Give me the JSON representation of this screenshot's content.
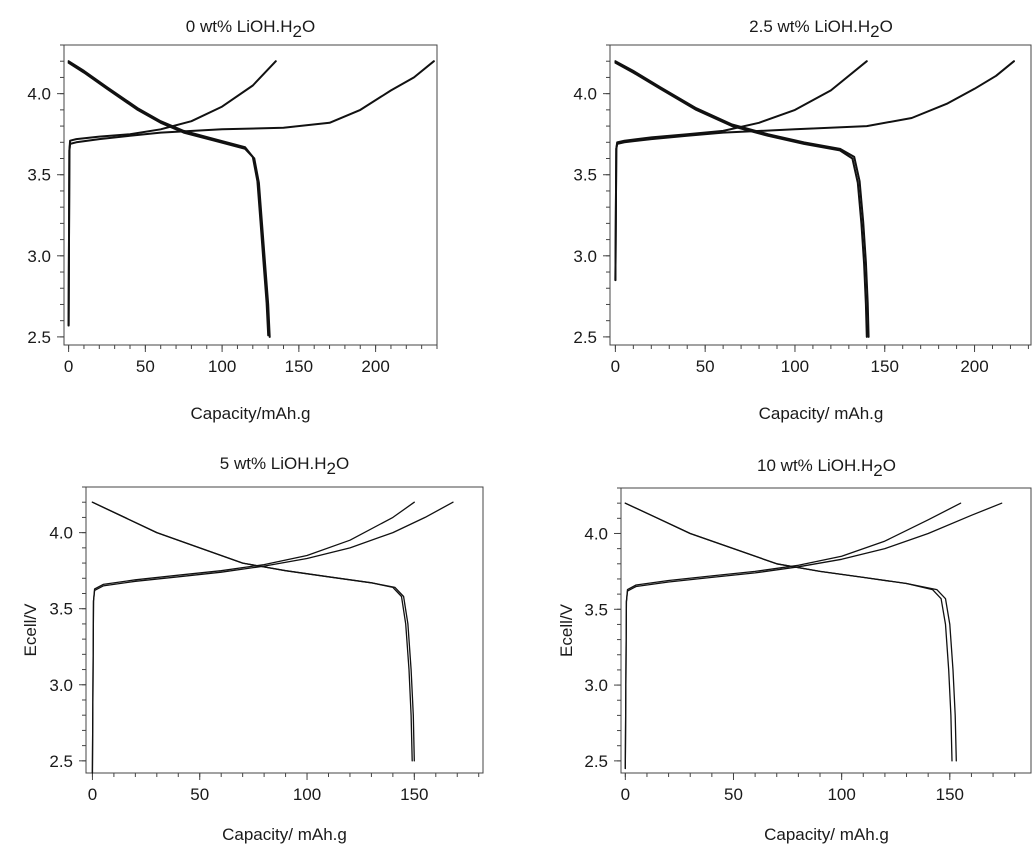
{
  "chart_data": [
    {
      "type": "line",
      "title": "0 wt% LiOH.H2O",
      "title_parts": {
        "prefix": "0 wt% LiOH.H",
        "sub": "2",
        "suffix": "O"
      },
      "xlabel": "Capacity/mAh.g",
      "ylabel": "",
      "xlim": [
        -3,
        240
      ],
      "ylim": [
        2.45,
        4.3
      ],
      "xticks": [
        0,
        50,
        100,
        150,
        200
      ],
      "xtick_labels": [
        "0",
        "50",
        "100",
        "150",
        "200"
      ],
      "yticks": [
        2.5,
        3.0,
        3.5,
        4.0
      ],
      "ytick_labels": [
        "2.5",
        "3.0",
        "3.5",
        "4.0"
      ],
      "grid": false,
      "series": [
        {
          "kind": "charge",
          "x": [
            0,
            0.5,
            1,
            5,
            20,
            40,
            60,
            80,
            100,
            120,
            135
          ],
          "y": [
            2.57,
            3.65,
            3.71,
            3.72,
            3.735,
            3.75,
            3.78,
            3.83,
            3.92,
            4.05,
            4.2
          ]
        },
        {
          "kind": "charge",
          "x": [
            0,
            0.5,
            1,
            5,
            20,
            40,
            60,
            100,
            140,
            170,
            190,
            210,
            225,
            238
          ],
          "y": [
            2.57,
            3.65,
            3.69,
            3.7,
            3.72,
            3.74,
            3.76,
            3.78,
            3.79,
            3.82,
            3.9,
            4.02,
            4.1,
            4.2
          ]
        },
        {
          "kind": "discharge",
          "x": [
            0,
            10,
            25,
            45,
            60,
            75,
            95,
            115,
            121,
            124,
            126,
            128,
            130,
            131
          ],
          "y": [
            4.19,
            4.13,
            4.03,
            3.9,
            3.82,
            3.76,
            3.71,
            3.66,
            3.6,
            3.45,
            3.2,
            2.95,
            2.7,
            2.5
          ]
        },
        {
          "kind": "discharge",
          "x": [
            0,
            10,
            25,
            45,
            60,
            75,
            95,
            115,
            120,
            123,
            125,
            127,
            129,
            130
          ],
          "y": [
            4.2,
            4.14,
            4.04,
            3.91,
            3.83,
            3.77,
            3.72,
            3.67,
            3.61,
            3.46,
            3.21,
            2.96,
            2.71,
            2.51
          ]
        }
      ]
    },
    {
      "type": "line",
      "title": "2.5 wt% LiOH.H2O",
      "title_parts": {
        "prefix": "2.5 wt% LiOH.H",
        "sub": "2",
        "suffix": "O"
      },
      "xlabel": "Capacity/ mAh.g",
      "ylabel": "",
      "xlim": [
        -3,
        232
      ],
      "ylim": [
        2.45,
        4.3
      ],
      "xticks": [
        0,
        50,
        100,
        150,
        200
      ],
      "xtick_labels": [
        "0",
        "50",
        "100",
        "150",
        "200"
      ],
      "yticks": [
        2.5,
        3.0,
        3.5,
        4.0
      ],
      "ytick_labels": [
        "2.5",
        "3.0",
        "3.5",
        "4.0"
      ],
      "grid": false,
      "series": [
        {
          "kind": "charge",
          "x": [
            0,
            0.5,
            1,
            5,
            20,
            40,
            60,
            80,
            100,
            120,
            140
          ],
          "y": [
            2.85,
            3.66,
            3.7,
            3.71,
            3.73,
            3.75,
            3.77,
            3.82,
            3.9,
            4.02,
            4.2
          ]
        },
        {
          "kind": "charge",
          "x": [
            0,
            0.5,
            1,
            5,
            20,
            40,
            60,
            100,
            140,
            165,
            185,
            200,
            212,
            222
          ],
          "y": [
            2.85,
            3.66,
            3.69,
            3.7,
            3.72,
            3.74,
            3.76,
            3.78,
            3.8,
            3.85,
            3.94,
            4.03,
            4.11,
            4.2
          ]
        },
        {
          "kind": "discharge",
          "x": [
            0,
            10,
            25,
            45,
            65,
            85,
            105,
            125,
            132,
            135,
            137,
            138.5,
            139.5,
            140
          ],
          "y": [
            4.19,
            4.13,
            4.03,
            3.9,
            3.8,
            3.74,
            3.69,
            3.65,
            3.6,
            3.45,
            3.2,
            2.95,
            2.7,
            2.5
          ]
        },
        {
          "kind": "discharge",
          "x": [
            0,
            10,
            25,
            45,
            65,
            85,
            105,
            125,
            133,
            136,
            138,
            139.5,
            140.5,
            141
          ],
          "y": [
            4.2,
            4.14,
            4.04,
            3.91,
            3.81,
            3.75,
            3.7,
            3.66,
            3.61,
            3.46,
            3.21,
            2.96,
            2.71,
            2.5
          ]
        }
      ]
    },
    {
      "type": "line",
      "title": "5 wt% LiOH.H2O",
      "title_parts": {
        "prefix": "5 wt% LiOH.H",
        "sub": "2",
        "suffix": "O"
      },
      "xlabel": "Capacity/ mAh.g",
      "ylabel": "Ecell/V",
      "xlim": [
        -3,
        182
      ],
      "ylim": [
        2.42,
        4.3
      ],
      "xticks": [
        0,
        50,
        100,
        150
      ],
      "xtick_labels": [
        "0",
        "50",
        "100",
        "150"
      ],
      "yticks": [
        2.5,
        3.0,
        3.5,
        4.0
      ],
      "ytick_labels": [
        "2.5",
        "3.0",
        "3.5",
        "4.0"
      ],
      "grid": false,
      "series": [
        {
          "kind": "charge",
          "x": [
            0,
            0.5,
            1,
            5,
            20,
            40,
            60,
            80,
            100,
            120,
            140,
            150
          ],
          "y": [
            2.42,
            3.55,
            3.63,
            3.66,
            3.69,
            3.72,
            3.75,
            3.79,
            3.85,
            3.95,
            4.1,
            4.2
          ]
        },
        {
          "kind": "charge",
          "x": [
            0,
            0.5,
            1,
            5,
            20,
            40,
            60,
            80,
            100,
            120,
            140,
            155,
            168
          ],
          "y": [
            2.42,
            3.55,
            3.62,
            3.65,
            3.68,
            3.71,
            3.74,
            3.78,
            3.83,
            3.9,
            4.0,
            4.1,
            4.2
          ]
        },
        {
          "kind": "discharge",
          "x": [
            0,
            15,
            30,
            50,
            70,
            90,
            110,
            130,
            140,
            144,
            146,
            147.5,
            148.5,
            149
          ],
          "y": [
            4.2,
            4.1,
            4.0,
            3.9,
            3.8,
            3.75,
            3.71,
            3.67,
            3.64,
            3.58,
            3.4,
            3.1,
            2.8,
            2.5
          ]
        },
        {
          "kind": "discharge",
          "x": [
            0,
            15,
            30,
            50,
            70,
            90,
            110,
            130,
            141,
            145,
            147,
            148.5,
            149.5,
            150
          ],
          "y": [
            4.2,
            4.1,
            4.0,
            3.9,
            3.8,
            3.75,
            3.71,
            3.67,
            3.64,
            3.58,
            3.4,
            3.1,
            2.8,
            2.5
          ]
        }
      ]
    },
    {
      "type": "line",
      "title": "10 wt% LiOH.H2O",
      "title_parts": {
        "prefix": "10 wt% LiOH.H",
        "sub": "2",
        "suffix": "O"
      },
      "xlabel": "Capacity/ mAh.g",
      "ylabel": "Ecell/V",
      "xlim": [
        -2,
        188
      ],
      "ylim": [
        2.42,
        4.3
      ],
      "xticks": [
        0,
        50,
        100,
        150
      ],
      "xtick_labels": [
        "0",
        "50",
        "100",
        "150"
      ],
      "yticks": [
        2.5,
        3.0,
        3.5,
        4.0
      ],
      "ytick_labels": [
        "2.5",
        "3.0",
        "3.5",
        "4.0"
      ],
      "grid": false,
      "series": [
        {
          "kind": "charge",
          "x": [
            0,
            0.5,
            1,
            5,
            20,
            40,
            60,
            80,
            100,
            120,
            140,
            155
          ],
          "y": [
            2.45,
            3.55,
            3.63,
            3.66,
            3.69,
            3.72,
            3.75,
            3.79,
            3.85,
            3.95,
            4.09,
            4.2
          ]
        },
        {
          "kind": "charge",
          "x": [
            0,
            0.5,
            1,
            5,
            20,
            40,
            60,
            80,
            100,
            120,
            140,
            160,
            174
          ],
          "y": [
            2.45,
            3.55,
            3.62,
            3.65,
            3.68,
            3.71,
            3.74,
            3.78,
            3.83,
            3.9,
            4.0,
            4.12,
            4.2
          ]
        },
        {
          "kind": "discharge",
          "x": [
            0,
            15,
            30,
            50,
            70,
            90,
            110,
            130,
            142,
            146,
            148,
            149.5,
            150.5,
            151
          ],
          "y": [
            4.2,
            4.1,
            4.0,
            3.9,
            3.8,
            3.75,
            3.71,
            3.67,
            3.63,
            3.57,
            3.4,
            3.1,
            2.8,
            2.5
          ]
        },
        {
          "kind": "discharge",
          "x": [
            0,
            15,
            30,
            50,
            70,
            90,
            110,
            130,
            144,
            148,
            150,
            151.5,
            152.5,
            153
          ],
          "y": [
            4.2,
            4.1,
            4.0,
            3.9,
            3.8,
            3.75,
            3.71,
            3.67,
            3.63,
            3.57,
            3.4,
            3.1,
            2.8,
            2.5
          ]
        }
      ]
    }
  ]
}
